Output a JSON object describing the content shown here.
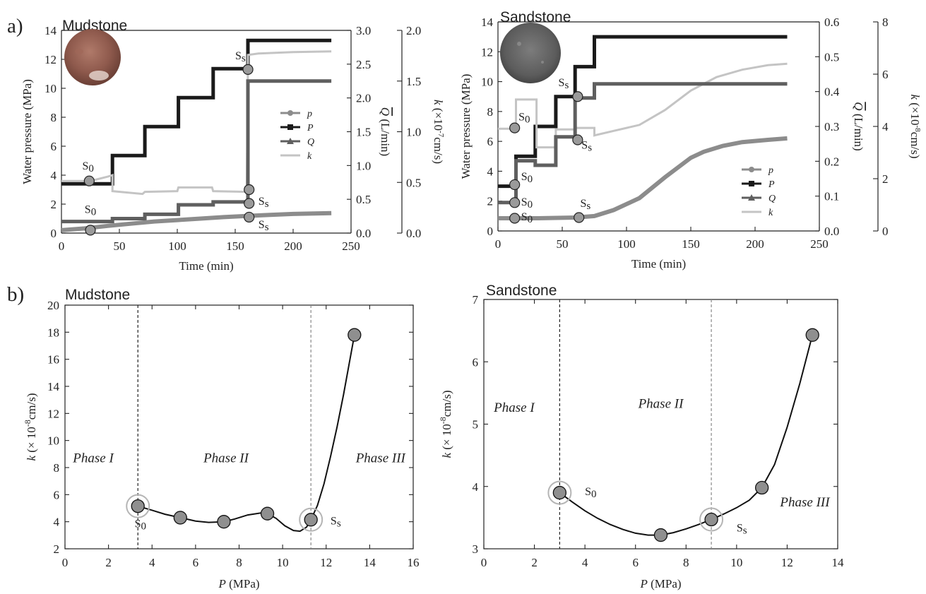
{
  "panel_labels": [
    "a)",
    "b)"
  ],
  "chart_data": [
    {
      "id": "a-mudstone",
      "type": "line",
      "title": "Mudstone",
      "xlabel": "Time (min)",
      "xlim": [
        0,
        250
      ],
      "xticks": [
        0,
        50,
        100,
        150,
        200,
        250
      ],
      "axes": {
        "left": {
          "label": "Water pressure (MPa)",
          "lim": [
            0,
            14
          ],
          "ticks": [
            0,
            2,
            4,
            6,
            8,
            10,
            12,
            14
          ]
        },
        "right1": {
          "label": "Q (L/min)",
          "lim": [
            0,
            3.0
          ],
          "ticks": [
            0.0,
            0.5,
            1.0,
            1.5,
            2.0,
            2.5,
            3.0
          ],
          "tick_labels": [
            "0.0",
            "0.5",
            "1.0",
            "1.5",
            "2.0",
            "2.5",
            "3.0"
          ]
        },
        "right2": {
          "label": "k (×10-7cm/s)",
          "label_parts": {
            "pre": "k (×10",
            "sup": "-7",
            "post": "cm/s)"
          },
          "lim": [
            0,
            2.0
          ],
          "ticks": [
            0.0,
            0.5,
            1.0,
            1.5,
            2.0
          ],
          "tick_labels": [
            "0.0",
            "0.5",
            "1.0",
            "1.5",
            "2.0"
          ]
        }
      },
      "legend": {
        "position": "right",
        "entries": [
          {
            "label": "p",
            "marker": "circle",
            "color": "#8c8c8c"
          },
          {
            "label": "P",
            "marker": "square",
            "color": "#1a1a1a"
          },
          {
            "label": "Q",
            "marker": "triangle",
            "color": "#5f5f5f"
          },
          {
            "label": "k",
            "marker": "none",
            "color": "#c4c4c4"
          }
        ]
      },
      "series": [
        {
          "name": "P",
          "axis": "left",
          "color": "#1a1a1a",
          "width": 5,
          "step": true,
          "x": [
            0,
            44,
            44,
            72,
            72,
            101,
            101,
            131,
            131,
            161,
            161,
            233
          ],
          "y": [
            3.4,
            3.4,
            5.35,
            5.35,
            7.35,
            7.35,
            9.35,
            9.35,
            11.35,
            11.35,
            13.3,
            13.3
          ]
        },
        {
          "name": "k",
          "axis": "left",
          "color": "#c4c4c4",
          "width": 3,
          "step": false,
          "x": [
            0,
            25,
            40,
            44,
            44,
            70,
            72,
            100,
            101,
            130,
            131,
            160,
            161,
            161,
            170,
            200,
            233
          ],
          "y": [
            3.6,
            3.6,
            3.9,
            4.0,
            2.9,
            2.7,
            2.85,
            2.9,
            3.15,
            3.15,
            2.9,
            2.85,
            11.5,
            12.3,
            12.4,
            12.5,
            12.55
          ]
        },
        {
          "name": "Q",
          "axis": "left",
          "color": "#5f5f5f",
          "width": 5,
          "step": true,
          "x": [
            0,
            44,
            44,
            72,
            72,
            101,
            101,
            131,
            131,
            161,
            161,
            233
          ],
          "y": [
            0.8,
            0.8,
            1.0,
            1.0,
            1.3,
            1.3,
            1.95,
            1.95,
            2.15,
            2.15,
            10.5,
            10.5
          ]
        },
        {
          "name": "p",
          "axis": "left",
          "color": "#8c8c8c",
          "width": 6,
          "step": false,
          "x": [
            0,
            20,
            40,
            60,
            80,
            100,
            120,
            140,
            160,
            180,
            200,
            233
          ],
          "y": [
            0.2,
            0.32,
            0.5,
            0.65,
            0.8,
            0.9,
            1.0,
            1.1,
            1.18,
            1.26,
            1.32,
            1.38
          ]
        }
      ],
      "points": [
        {
          "x": 24,
          "y": 3.6,
          "label": "S0"
        },
        {
          "x": 161,
          "y": 11.3,
          "label": "Ss"
        },
        {
          "x": 162,
          "y": 3.0,
          "label": "Ss"
        },
        {
          "x": 162,
          "y": 2.05,
          "label": "Ss"
        },
        {
          "x": 162,
          "y": 1.1,
          "label": "Ss"
        },
        {
          "x": 25,
          "y": 0.2,
          "label": ""
        }
      ],
      "annotations": [
        {
          "text": "S0",
          "x": 18,
          "y": 4.4
        },
        {
          "text": "S0",
          "x": 20,
          "y": 1.4
        },
        {
          "text": "Ss",
          "x": 150,
          "y": 12.0
        },
        {
          "text": "Ss",
          "x": 170,
          "y": 1.95
        },
        {
          "text": "Ss",
          "x": 170,
          "y": 0.35
        }
      ]
    },
    {
      "id": "a-sandstone",
      "type": "line",
      "title": "Sandstone",
      "xlabel": "Time (min)",
      "xlim": [
        0,
        250
      ],
      "xticks": [
        0,
        50,
        100,
        150,
        200,
        250
      ],
      "axes": {
        "left": {
          "label": "Water pressure (MPa)",
          "lim": [
            0,
            14
          ],
          "ticks": [
            0,
            2,
            4,
            6,
            8,
            10,
            12,
            14
          ]
        },
        "right1": {
          "label": "Q (L/min)",
          "lim": [
            0,
            0.6
          ],
          "ticks": [
            0.0,
            0.1,
            0.2,
            0.3,
            0.4,
            0.5,
            0.6
          ],
          "tick_labels": [
            "0.0",
            "0.1",
            "0.2",
            "0.3",
            "0.4",
            "0.5",
            "0.6"
          ]
        },
        "right2": {
          "label": "k (×10-8cm/s)",
          "label_parts": {
            "pre": "k (×10",
            "sup": "-8",
            "post": "cm/s)"
          },
          "lim": [
            0,
            8
          ],
          "ticks": [
            0,
            2,
            4,
            6,
            8
          ],
          "tick_labels": [
            "0",
            "2",
            "4",
            "6",
            "8"
          ]
        }
      },
      "legend": {
        "position": "bottom-right",
        "entries": [
          {
            "label": "p",
            "marker": "circle",
            "color": "#8c8c8c"
          },
          {
            "label": "P",
            "marker": "square",
            "color": "#1a1a1a"
          },
          {
            "label": "Q",
            "marker": "triangle",
            "color": "#5f5f5f"
          },
          {
            "label": "k",
            "marker": "none",
            "color": "#c4c4c4"
          }
        ]
      },
      "series": [
        {
          "name": "P",
          "axis": "left",
          "color": "#1a1a1a",
          "width": 5,
          "step": true,
          "x": [
            0,
            14,
            14,
            29,
            29,
            45,
            45,
            60,
            60,
            75,
            75,
            225
          ],
          "y": [
            3.0,
            3.0,
            5.0,
            5.0,
            7.0,
            7.0,
            9.0,
            9.0,
            11.0,
            11.0,
            13.0,
            13.0
          ]
        },
        {
          "name": "k",
          "axis": "left",
          "color": "#c4c4c4",
          "width": 3,
          "step": false,
          "x": [
            0,
            14,
            14,
            30,
            30,
            45,
            45,
            60,
            60,
            75,
            75,
            90,
            110,
            130,
            150,
            170,
            190,
            210,
            225
          ],
          "y": [
            6.85,
            6.85,
            8.8,
            8.8,
            5.6,
            5.6,
            6.8,
            6.8,
            6.9,
            6.9,
            6.4,
            6.7,
            7.1,
            8.1,
            9.4,
            10.3,
            10.8,
            11.1,
            11.2
          ]
        },
        {
          "name": "Q",
          "axis": "left",
          "color": "#5f5f5f",
          "width": 5,
          "step": true,
          "x": [
            0,
            14,
            14,
            29,
            29,
            45,
            45,
            60,
            60,
            75,
            75,
            225
          ],
          "y": [
            1.9,
            1.9,
            4.7,
            4.7,
            4.4,
            4.4,
            6.3,
            6.3,
            8.9,
            8.9,
            9.85,
            9.85
          ]
        },
        {
          "name": "p",
          "axis": "left",
          "color": "#8c8c8c",
          "width": 6,
          "step": false,
          "x": [
            0,
            30,
            60,
            75,
            90,
            110,
            130,
            150,
            160,
            175,
            190,
            210,
            225
          ],
          "y": [
            0.85,
            0.85,
            0.9,
            1.0,
            1.4,
            2.2,
            3.6,
            4.9,
            5.3,
            5.7,
            5.95,
            6.1,
            6.2
          ]
        }
      ],
      "points": [
        {
          "x": 13,
          "y": 6.9,
          "label": "S0"
        },
        {
          "x": 62,
          "y": 9.0,
          "label": "Ss"
        },
        {
          "x": 62,
          "y": 6.1,
          "label": "Ss"
        },
        {
          "x": 13,
          "y": 3.1,
          "label": "S0"
        },
        {
          "x": 13,
          "y": 1.9,
          "label": "S0"
        },
        {
          "x": 13,
          "y": 0.85,
          "label": "S0"
        },
        {
          "x": 63,
          "y": 0.9,
          "label": "Ss"
        }
      ],
      "annotations": [
        {
          "text": "S0",
          "x": 16,
          "y": 7.4
        },
        {
          "text": "Ss",
          "x": 47,
          "y": 9.7
        },
        {
          "text": "Ss",
          "x": 65,
          "y": 5.5
        },
        {
          "text": "S0",
          "x": 18,
          "y": 3.4
        },
        {
          "text": "S0",
          "x": 18,
          "y": 1.7
        },
        {
          "text": "S0",
          "x": 18,
          "y": 0.7
        },
        {
          "text": "Ss",
          "x": 64,
          "y": 1.6
        }
      ]
    },
    {
      "id": "b-mudstone",
      "type": "line",
      "title": "Mudstone",
      "xlabel": "P (MPa)",
      "xlabel_parts": {
        "italic": "P",
        "rest": " (MPa)"
      },
      "ylabel": "k (× 10-8cm/s)",
      "ylabel_parts": {
        "italic": "k",
        "pre": " (×  10",
        "sup": "-8",
        "post": "cm/s)"
      },
      "xlim": [
        0,
        16
      ],
      "xticks": [
        0,
        2,
        4,
        6,
        8,
        10,
        12,
        14,
        16
      ],
      "ylim": [
        2,
        20
      ],
      "yticks": [
        2,
        4,
        6,
        8,
        10,
        12,
        14,
        16,
        18,
        20
      ],
      "points": [
        {
          "x": 3.35,
          "y": 5.15,
          "ring": true
        },
        {
          "x": 5.3,
          "y": 4.3,
          "ring": false
        },
        {
          "x": 7.3,
          "y": 4.0,
          "ring": false
        },
        {
          "x": 9.3,
          "y": 4.6,
          "ring": false
        },
        {
          "x": 11.3,
          "y": 4.15,
          "ring": true
        },
        {
          "x": 13.3,
          "y": 17.8,
          "ring": false
        }
      ],
      "curve": {
        "x": [
          3.35,
          4.0,
          4.6,
          5.3,
          6.0,
          6.6,
          7.3,
          7.8,
          8.4,
          9.0,
          9.3,
          9.7,
          10.1,
          10.5,
          10.8,
          11.1,
          11.3,
          11.6,
          11.9,
          12.2,
          12.5,
          12.8,
          13.05,
          13.3
        ],
        "y": [
          5.15,
          4.85,
          4.55,
          4.3,
          4.05,
          3.95,
          4.0,
          4.2,
          4.5,
          4.65,
          4.6,
          4.25,
          3.7,
          3.35,
          3.3,
          3.6,
          4.15,
          5.2,
          6.8,
          8.8,
          11.0,
          13.4,
          15.6,
          17.8
        ]
      },
      "vlines": [
        {
          "x": 3.35,
          "style": "dashed",
          "color": "#222222"
        },
        {
          "x": 11.3,
          "style": "dashed",
          "color": "#888888"
        }
      ],
      "annotations": [
        {
          "text": "Phase I",
          "x": 1.3,
          "y": 8.4
        },
        {
          "text": "Phase II",
          "x": 7.4,
          "y": 8.4
        },
        {
          "text": "Phase III",
          "x": 14.5,
          "y": 8.4
        },
        {
          "text": "S0",
          "x": 3.2,
          "y": 3.6
        },
        {
          "text": "Ss",
          "x": 12.2,
          "y": 3.8
        }
      ]
    },
    {
      "id": "b-sandstone",
      "type": "line",
      "title": "Sandstone",
      "xlabel": "P (MPa)",
      "xlabel_parts": {
        "italic": "P",
        "rest": " (MPa)"
      },
      "ylabel": "k (× 10-8cm/s)",
      "ylabel_parts": {
        "italic": "k",
        "pre": " (×  10",
        "sup": "-8",
        "post": "cm/s)"
      },
      "xlim": [
        0,
        14
      ],
      "xticks": [
        0,
        2,
        4,
        6,
        8,
        10,
        12,
        14
      ],
      "ylim": [
        3,
        7
      ],
      "yticks": [
        3,
        4,
        5,
        6,
        7
      ],
      "points": [
        {
          "x": 3.0,
          "y": 3.9,
          "ring": true
        },
        {
          "x": 7.0,
          "y": 3.22,
          "ring": false
        },
        {
          "x": 9.0,
          "y": 3.47,
          "ring": true
        },
        {
          "x": 11.0,
          "y": 3.98,
          "ring": false
        },
        {
          "x": 13.0,
          "y": 6.43,
          "ring": false
        }
      ],
      "curve": {
        "x": [
          3.0,
          3.5,
          4.0,
          4.5,
          5.0,
          5.5,
          6.0,
          6.5,
          7.0,
          7.5,
          8.0,
          8.5,
          9.0,
          9.5,
          10.0,
          10.5,
          11.0,
          11.5,
          12.0,
          12.5,
          13.0
        ],
        "y": [
          3.9,
          3.75,
          3.61,
          3.49,
          3.39,
          3.31,
          3.25,
          3.22,
          3.22,
          3.26,
          3.32,
          3.39,
          3.47,
          3.56,
          3.66,
          3.78,
          3.98,
          4.35,
          4.95,
          5.65,
          6.43
        ]
      },
      "vlines": [
        {
          "x": 3.0,
          "style": "dashed",
          "color": "#222222"
        },
        {
          "x": 9.0,
          "style": "dashed",
          "color": "#888888"
        }
      ],
      "annotations": [
        {
          "text": "Phase I",
          "x": 1.2,
          "y": 5.2
        },
        {
          "text": "Phase II",
          "x": 7.0,
          "y": 5.26
        },
        {
          "text": "Phase III",
          "x": 12.7,
          "y": 3.68
        },
        {
          "text": "S0",
          "x": 4.0,
          "y": 3.86
        },
        {
          "text": "Ss",
          "x": 10.0,
          "y": 3.28
        }
      ]
    }
  ]
}
